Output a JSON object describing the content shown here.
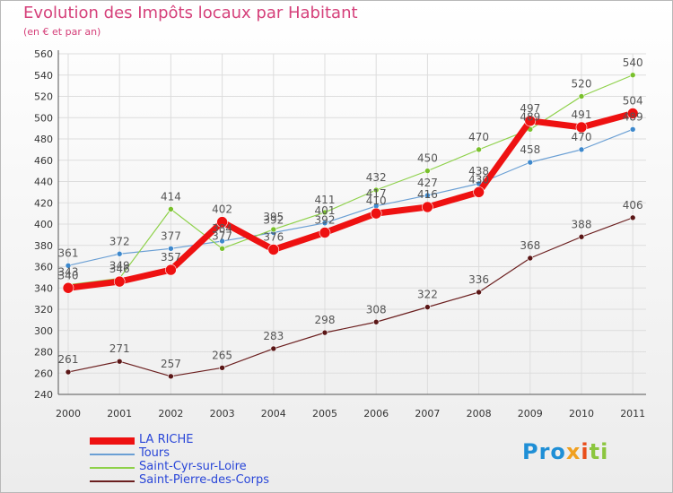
{
  "title": "Evolution des Impôts locaux par Habitant",
  "subtitle": "(en € et par an)",
  "logo": {
    "parts": [
      "Pro",
      "x",
      "i",
      "ti"
    ]
  },
  "chart_data": {
    "type": "line",
    "title": "Evolution des Impôts locaux par Habitant",
    "subtitle": "(en € et par an)",
    "xlabel": "",
    "ylabel": "",
    "x": [
      "2000",
      "2001",
      "2002",
      "2003",
      "2004",
      "2005",
      "2006",
      "2007",
      "2008",
      "2009",
      "2010",
      "2011"
    ],
    "ylim": [
      240,
      560
    ],
    "yticks": [
      240,
      260,
      280,
      300,
      320,
      340,
      360,
      380,
      400,
      420,
      440,
      460,
      480,
      500,
      520,
      540,
      560
    ],
    "grid": true,
    "legend": "bottom-left",
    "series": [
      {
        "name": "Saint-Pierre-des-Corps",
        "color": "#6b1f1f",
        "values": [
          261,
          271,
          257,
          265,
          283,
          298,
          308,
          322,
          336,
          368,
          388,
          406
        ]
      },
      {
        "name": "Tours",
        "color": "#6a9fd4",
        "values": [
          361,
          372,
          377,
          384,
          392,
          401,
          417,
          427,
          438,
          458,
          470,
          489
        ]
      },
      {
        "name": "Saint-Cyr-sur-Loire",
        "color": "#8ed14a",
        "values": [
          343,
          349,
          414,
          377,
          395,
          411,
          432,
          450,
          470,
          489,
          520,
          540
        ]
      },
      {
        "name": "LA RICHE",
        "color": "#ee1111",
        "values": [
          340,
          346,
          357,
          402,
          376,
          392,
          410,
          416,
          430,
          497,
          491,
          504
        ]
      }
    ]
  }
}
